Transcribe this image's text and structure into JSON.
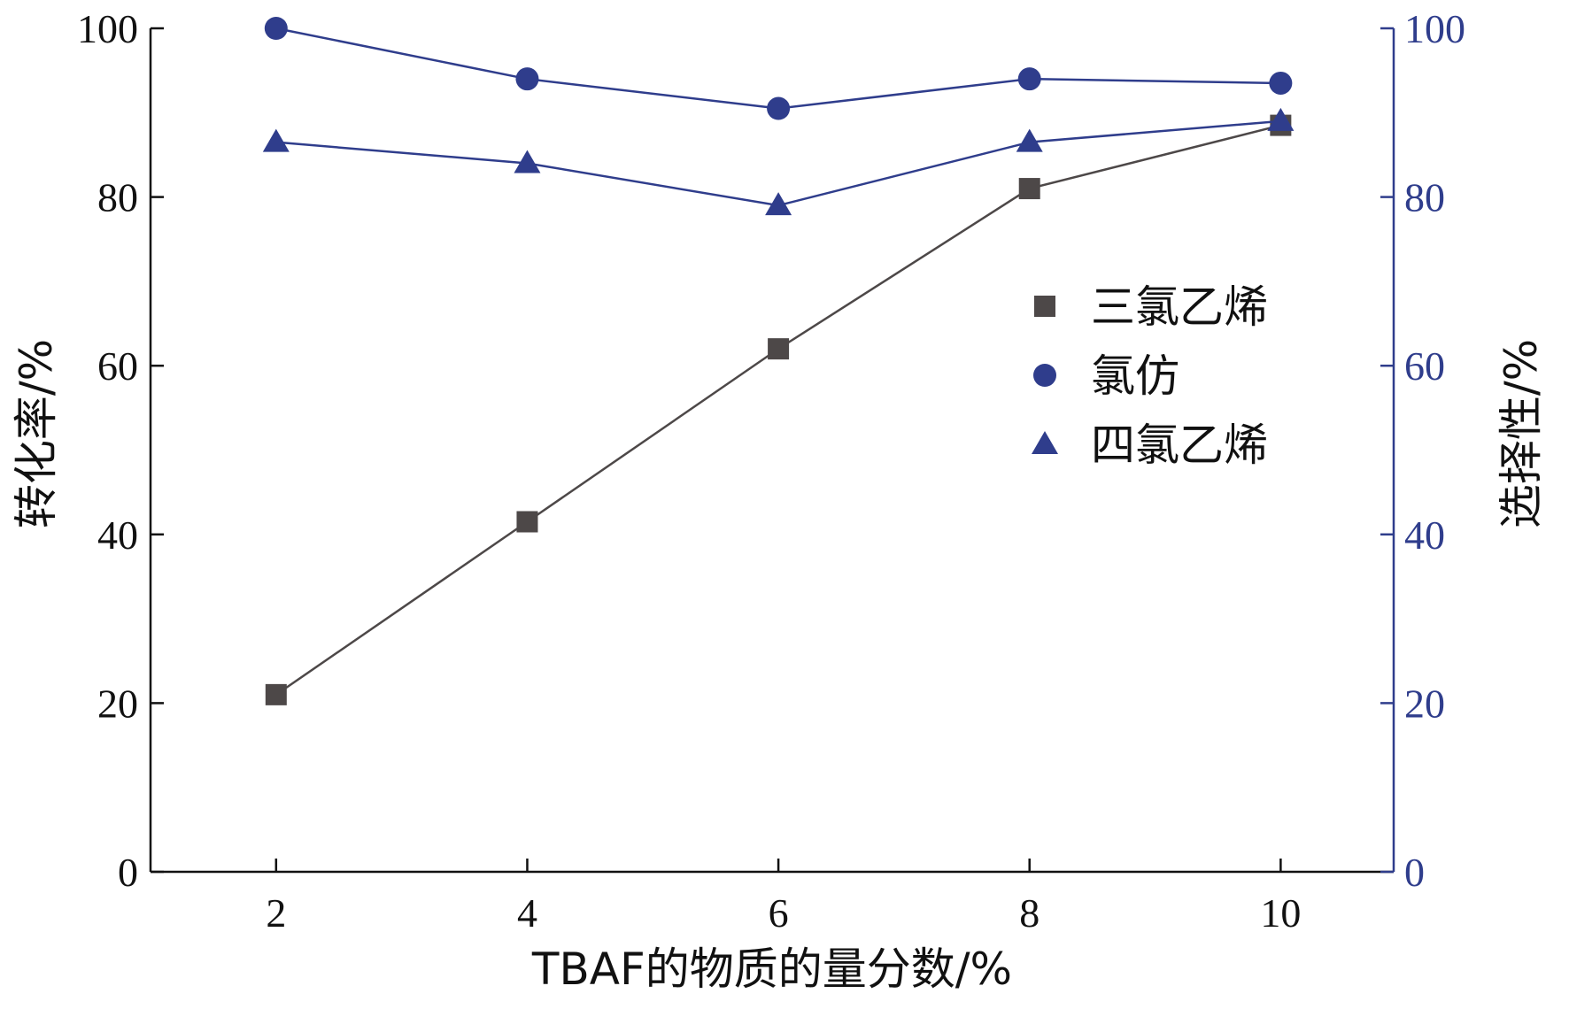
{
  "chart_data": {
    "type": "line",
    "title": "",
    "xlabel": "TBAF的物质的量分数/%",
    "ylabel_left": "转化率/%",
    "ylabel_right": "选择性/%",
    "x": [
      2,
      4,
      6,
      8,
      10
    ],
    "x_ticks": [
      "2",
      "4",
      "6",
      "8",
      "10"
    ],
    "y_ticks": [
      "0",
      "20",
      "40",
      "60",
      "80",
      "100"
    ],
    "xlim": [
      1,
      10.9
    ],
    "ylim_left": [
      0,
      100
    ],
    "ylim_right": [
      0,
      100
    ],
    "legend_position": "center-right",
    "colors": {
      "conversion": "#4d4848",
      "selectivity": "#2f3d8c",
      "axis_left": "#111111",
      "axis_right": "#2f3d8c"
    },
    "series": [
      {
        "name": "三氯乙烯",
        "axis": "left",
        "marker": "square",
        "values": [
          21,
          41.5,
          62,
          81,
          88.5
        ]
      },
      {
        "name": "氯仿",
        "axis": "right",
        "marker": "circle",
        "values": [
          100,
          94,
          90.5,
          94,
          93.5
        ]
      },
      {
        "name": "四氯乙烯",
        "axis": "right",
        "marker": "triangle",
        "values": [
          86.5,
          84,
          79,
          86.5,
          89
        ]
      }
    ]
  }
}
